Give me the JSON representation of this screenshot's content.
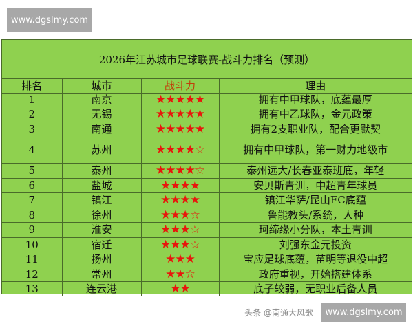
{
  "watermarks": {
    "top_left": "www.dgslmy.com",
    "bottom_right": "www.dgslmy.com",
    "overlay": "头条 @南通大风歌"
  },
  "colors": {
    "background": "#8fd14f",
    "star": "#e8160c",
    "header_power": "#c0400a"
  },
  "table": {
    "title": "2026年江苏城市足球联赛-战斗力排名（预测）",
    "headers": [
      "排名",
      "城市",
      "战斗力",
      "理由"
    ],
    "rows": [
      {
        "rank": "1",
        "city": "南京",
        "stars_filled": 5,
        "stars_empty": 0,
        "reason": "拥有中甲球队，底蕴最厚"
      },
      {
        "rank": "2",
        "city": "无锡",
        "stars_filled": 5,
        "stars_empty": 0,
        "reason": "拥有中乙球队，金元政策"
      },
      {
        "rank": "3",
        "city": "南通",
        "stars_filled": 5,
        "stars_empty": 0,
        "reason": "拥有2支职业队，配合更默契"
      },
      {
        "rank": "4",
        "city": "苏州",
        "stars_filled": 4,
        "stars_empty": 1,
        "reason": "拥有中甲球队，第一财力地级市"
      },
      {
        "rank": "5",
        "city": "泰州",
        "stars_filled": 4,
        "stars_empty": 1,
        "reason": "泰州远大/长春亚泰班底，年轻"
      },
      {
        "rank": "6",
        "city": "盐城",
        "stars_filled": 4,
        "stars_empty": 0,
        "reason": "安贝斯青训，中超青年球员"
      },
      {
        "rank": "7",
        "city": "镇江",
        "stars_filled": 4,
        "stars_empty": 0,
        "reason": "镇江华萨/昆山FC底蕴"
      },
      {
        "rank": "8",
        "city": "徐州",
        "stars_filled": 3,
        "stars_empty": 1,
        "reason": "鲁能教头/系统，人种"
      },
      {
        "rank": "9",
        "city": "淮安",
        "stars_filled": 3,
        "stars_empty": 1,
        "reason": "珂缔缘小分队，本土青训"
      },
      {
        "rank": "10",
        "city": "宿迁",
        "stars_filled": 3,
        "stars_empty": 1,
        "reason": "刘强东金元投资"
      },
      {
        "rank": "11",
        "city": "扬州",
        "stars_filled": 3,
        "stars_empty": 0,
        "reason": "宝应足球底蕴，苗明等退役中超"
      },
      {
        "rank": "12",
        "city": "常州",
        "stars_filled": 2,
        "stars_empty": 1,
        "reason": "政府重视，开始搭建体系"
      },
      {
        "rank": "13",
        "city": "连云港",
        "stars_filled": 2,
        "stars_empty": 0,
        "reason": "底子较弱，无职业后备人员"
      }
    ]
  }
}
